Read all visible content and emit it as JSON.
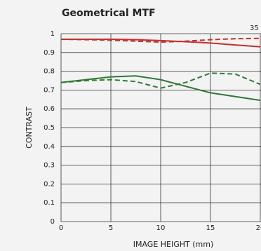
{
  "chart_data": {
    "type": "line",
    "title": "Geometrical MTF",
    "annotation": "35",
    "xlabel": "IMAGE HEIGHT (mm)",
    "ylabel": "CONTRAST",
    "x": [
      0,
      2.5,
      5,
      7.5,
      10,
      12.5,
      15,
      17.5,
      20
    ],
    "series": [
      {
        "color": "#c62f2c",
        "dashed": false,
        "values": [
          0.97,
          0.97,
          0.97,
          0.968,
          0.963,
          0.957,
          0.95,
          0.94,
          0.93
        ]
      },
      {
        "color": "#c62f2c",
        "dashed": true,
        "values": [
          0.97,
          0.968,
          0.965,
          0.96,
          0.955,
          0.96,
          0.968,
          0.973,
          0.975
        ]
      },
      {
        "color": "#2f7a34",
        "dashed": false,
        "values": [
          0.74,
          0.755,
          0.77,
          0.775,
          0.755,
          0.72,
          0.685,
          0.665,
          0.645
        ]
      },
      {
        "color": "#2f7a34",
        "dashed": true,
        "values": [
          0.74,
          0.75,
          0.755,
          0.745,
          0.71,
          0.74,
          0.79,
          0.785,
          0.73
        ]
      }
    ],
    "xlim": [
      0,
      20
    ],
    "xticks": [
      0,
      5,
      10,
      15,
      20
    ],
    "ylim": [
      0,
      1
    ],
    "yticks": [
      0,
      0.1,
      0.2,
      0.3,
      0.4,
      0.5,
      0.6,
      0.7,
      0.8,
      0.9,
      1
    ],
    "grid": true
  }
}
